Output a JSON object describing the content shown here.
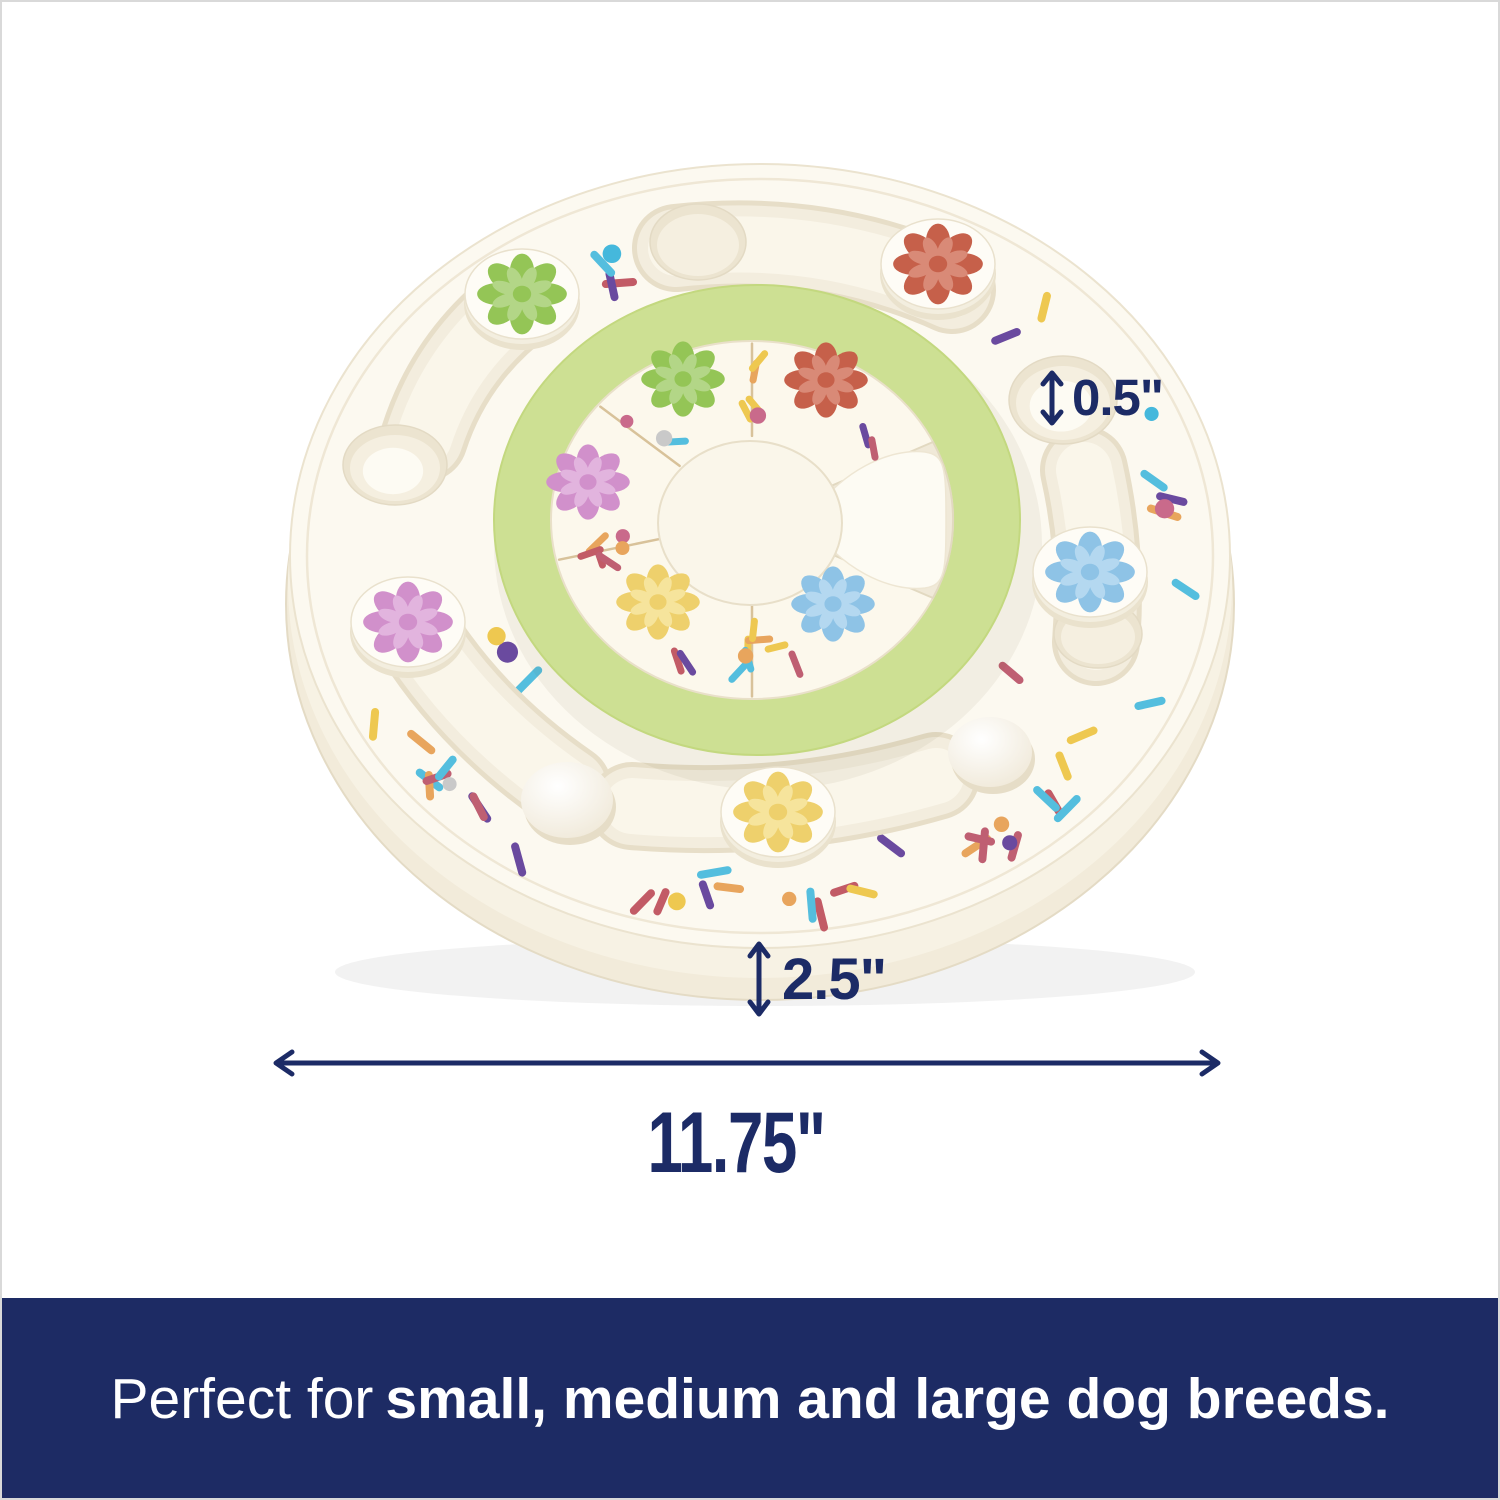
{
  "page": {
    "background": "#ffffff",
    "border_color": "#d9d9d9"
  },
  "product": {
    "name": "interactive dog puzzle feeder (birthday cake style)",
    "body_color": "#fcf9f0",
    "body_side_color": "#f2ebda",
    "recess_wall_color": "#f3edde",
    "recess_floor_color": "#faf6ea",
    "recess_edge_color": "#e7dec8",
    "lip_line_color": "#efe7d5",
    "ring_color": "#cde093",
    "ring_edge_color": "#c3d87f",
    "pie_color": "#fcf8ec",
    "wedge_floor_color": "#f0e9d8",
    "bowl_color": "#fdfbf3",
    "seam_color": "#d8c29a",
    "sprinkle_stick_colors": [
      "#6a4a9f",
      "#bf5f72",
      "#eec850",
      "#e8a55d",
      "#54bede",
      "#c25b66"
    ],
    "sprinkle_dot_colors": [
      "#e8a55d",
      "#eec850",
      "#6a4a9f",
      "#c9c9c9",
      "#45b8dc",
      "#c96a8b"
    ],
    "flowers": {
      "green": {
        "main": "#94c556",
        "light": "#b3d687"
      },
      "red": {
        "main": "#c6604a",
        "light": "#d98a77"
      },
      "pink": {
        "main": "#d190cb",
        "light": "#e2b4de"
      },
      "blue": {
        "main": "#8ec3e6",
        "light": "#b4d8f0"
      },
      "yellow": {
        "main": "#eed06c",
        "light": "#f6e49c"
      }
    }
  },
  "annotations": {
    "color": "#1c2b66",
    "depth": {
      "label": "0.5\""
    },
    "height": {
      "label": "2.5\""
    },
    "width": {
      "label": "11.75\""
    }
  },
  "banner": {
    "background": "#1d2b64",
    "text_color": "#ffffff",
    "prefix": "Perfect for",
    "emphasis": "small, medium and large dog breeds."
  }
}
